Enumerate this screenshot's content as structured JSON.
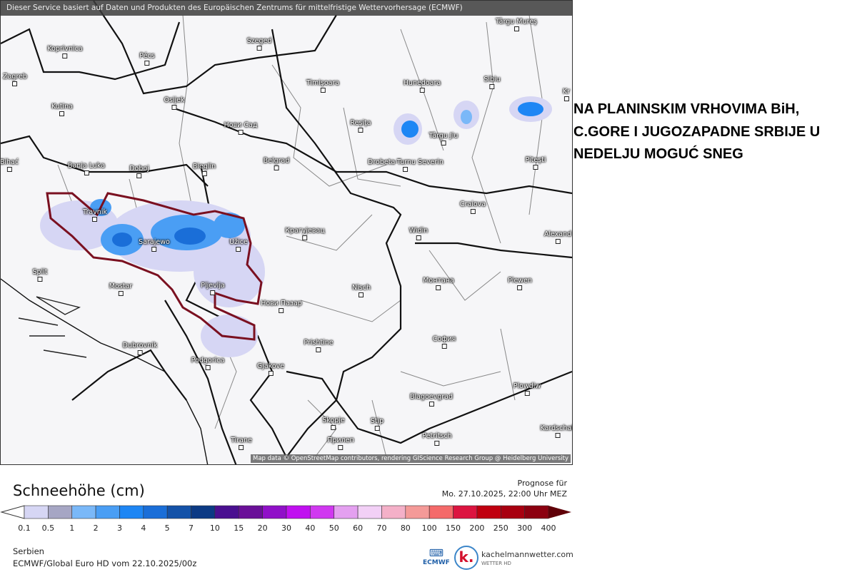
{
  "map": {
    "banner": "Dieser Service basiert auf Daten und Produkten des Europäischen Zentrums für mittelfristige Wettervorhersage (ECMWF)",
    "attribution": "Map data © OpenStreetMap contributors, rendering GIScience Research Group @ Heidelberg University",
    "cities": [
      "Koprivnica",
      "Pécs",
      "Szeged",
      "Zagreb",
      "Osijek",
      "Timişoara",
      "Hunedoara",
      "Sibiu",
      "Kutina",
      "Нови Сад",
      "Reşiţa",
      "Târgu Jiu",
      "Bihać",
      "Banja Luka",
      "Doboj",
      "Bieglin",
      "Belgrad",
      "Drobeta-Turnu Severin",
      "Piteşti",
      "Travnik",
      "Sarajewo",
      "Užice",
      "Крагујевац",
      "Craiova",
      "Widin",
      "Alexand",
      "Split",
      "Mostar",
      "Pljevlja",
      "Nisch",
      "Монтана",
      "Plewen",
      "Нови Пазар",
      "Dubrovnik",
      "Podgorica",
      "Prishtine",
      "София",
      "Gjakove",
      "Plowdiw",
      "Skopje",
      "Stip",
      "Blagoevgrad",
      "Tirane",
      "Прилеп",
      "Petritsch",
      "Kardschali",
      "Târgu Mureş",
      "Kr"
    ],
    "highlight_color": "#7a1020"
  },
  "headline": "NA PLANINSKIM VRHOVIMA BiH, C.GORE I JUGOZAPADNE SRBIJE U NEDELJU MOGUĆ SNEG",
  "legend": {
    "title": "Schneehöhe (cm)",
    "forecast_label": "Prognose für",
    "forecast_time": "Mo. 27.10.2025, 22:00 Uhr MEZ",
    "ticks": [
      "0.1",
      "0.5",
      "1",
      "2",
      "3",
      "4",
      "5",
      "7",
      "10",
      "15",
      "20",
      "30",
      "40",
      "50",
      "60",
      "70",
      "80",
      "100",
      "150",
      "200",
      "250",
      "300",
      "400"
    ],
    "colors": [
      "#d6d6f4",
      "#a6a6c4",
      "#7ab8f8",
      "#4a9ef4",
      "#1e86f4",
      "#1a6ed8",
      "#1452a8",
      "#0c3a84",
      "#4a1090",
      "#6a1098",
      "#9010c8",
      "#c010f0",
      "#d038f0",
      "#e4a0f0",
      "#f2d0f6",
      "#f4b0c8",
      "#f49a98",
      "#f46a6a",
      "#dc1440",
      "#c00010",
      "#a80010",
      "#8c0010",
      "#600008"
    ]
  },
  "footer": {
    "region": "Serbien",
    "model": "ECMWF/Global Euro HD vom  22.10.2025/00z"
  },
  "logos": {
    "ecmwf": "ECMWF",
    "kachelmann": "kachelmannwetter.com",
    "kachelmann_sub": "WETTER HD",
    "k": "k."
  }
}
